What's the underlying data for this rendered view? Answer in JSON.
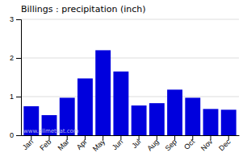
{
  "chart_data": {
    "type": "bar",
    "title": "Billings : precipitation (inch)",
    "categories": [
      "Jan",
      "Feb",
      "Mar",
      "Apr",
      "May",
      "Jun",
      "Jul",
      "Aug",
      "Sep",
      "Oct",
      "Nov",
      "Dec"
    ],
    "values": [
      0.75,
      0.52,
      0.97,
      1.47,
      2.2,
      1.65,
      0.77,
      0.83,
      1.18,
      0.97,
      0.68,
      0.66
    ],
    "color": "#0000DD",
    "ylim": [
      0,
      3
    ],
    "yticks": [
      0,
      1,
      2,
      3
    ],
    "grid": true,
    "annotations": [
      "www.allmetsat.com"
    ]
  }
}
